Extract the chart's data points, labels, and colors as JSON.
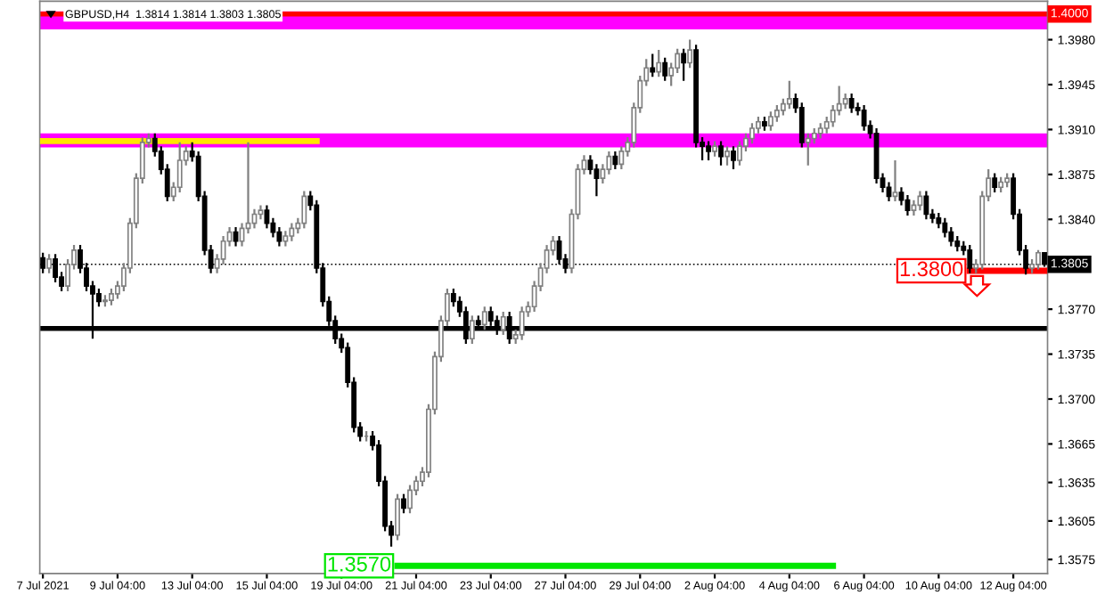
{
  "chart_data": {
    "type": "candlestick",
    "title": "GBPUSD,H4  1.3814 1.3814 1.3803 1.3805",
    "categories": [
      "7 Jul 2021",
      null,
      null,
      null,
      null,
      null,
      null,
      null,
      null,
      null,
      null,
      null,
      "9 Jul 04:00",
      null,
      null,
      null,
      null,
      null,
      null,
      null,
      null,
      null,
      null,
      null,
      "13 Jul 04:00",
      null,
      null,
      null,
      null,
      null,
      null,
      null,
      null,
      null,
      null,
      null,
      "15 Jul 04:00",
      null,
      null,
      null,
      null,
      null,
      null,
      null,
      null,
      null,
      null,
      null,
      "19 Jul 04:00",
      null,
      null,
      null,
      null,
      null,
      null,
      null,
      null,
      null,
      null,
      null,
      "21 Jul 04:00",
      null,
      null,
      null,
      null,
      null,
      null,
      null,
      null,
      null,
      null,
      null,
      "23 Jul 04:00",
      null,
      null,
      null,
      null,
      null,
      null,
      null,
      null,
      null,
      null,
      null,
      "27 Jul 04:00",
      null,
      null,
      null,
      null,
      null,
      null,
      null,
      null,
      null,
      null,
      null,
      "29 Jul 04:00",
      null,
      null,
      null,
      null,
      null,
      null,
      null,
      null,
      null,
      null,
      null,
      "2 Aug 04:00",
      null,
      null,
      null,
      null,
      null,
      null,
      null,
      null,
      null,
      null,
      null,
      "4 Aug 04:00",
      null,
      null,
      null,
      null,
      null,
      null,
      null,
      null,
      null,
      null,
      null,
      "6 Aug 04:00",
      null,
      null,
      null,
      null,
      null,
      null,
      null,
      null,
      null,
      null,
      null,
      "10 Aug 04:00",
      null,
      null,
      null,
      null,
      null,
      null,
      null,
      null,
      null,
      null,
      null,
      "12 Aug 04:00",
      null,
      null,
      null,
      null,
      null
    ],
    "ohlc": [
      [
        1.381,
        1.3814,
        1.3798,
        1.3802
      ],
      [
        1.3802,
        1.3813,
        1.3798,
        1.3809
      ],
      [
        1.3809,
        1.3813,
        1.3791,
        1.3795
      ],
      [
        1.3795,
        1.3799,
        1.3784,
        1.3788
      ],
      [
        1.3788,
        1.3809,
        1.3784,
        1.3805
      ],
      [
        1.3805,
        1.382,
        1.3801,
        1.3816
      ],
      [
        1.3816,
        1.382,
        1.3798,
        1.3802
      ],
      [
        1.3802,
        1.3806,
        1.3784,
        1.3788
      ],
      [
        1.3788,
        1.3792,
        1.3747,
        1.3782
      ],
      [
        1.3782,
        1.3786,
        1.3772,
        1.3776
      ],
      [
        1.3776,
        1.3781,
        1.3772,
        1.3777
      ],
      [
        1.3777,
        1.3786,
        1.3773,
        1.3782
      ],
      [
        1.3782,
        1.3792,
        1.3778,
        1.3788
      ],
      [
        1.3788,
        1.3806,
        1.3784,
        1.3802
      ],
      [
        1.3802,
        1.3841,
        1.3798,
        1.3837
      ],
      [
        1.3837,
        1.3876,
        1.3833,
        1.3872
      ],
      [
        1.3872,
        1.3904,
        1.3868,
        1.39
      ],
      [
        1.39,
        1.3907,
        1.3896,
        1.3903
      ],
      [
        1.3903,
        1.3907,
        1.3889,
        1.3893
      ],
      [
        1.3893,
        1.3897,
        1.3875,
        1.3879
      ],
      [
        1.3879,
        1.3883,
        1.3854,
        1.3858
      ],
      [
        1.3858,
        1.3869,
        1.3854,
        1.3865
      ],
      [
        1.3865,
        1.39,
        1.3861,
        1.3886
      ],
      [
        1.3886,
        1.3897,
        1.3882,
        1.3893
      ],
      [
        1.3893,
        1.39,
        1.3885,
        1.3889
      ],
      [
        1.3889,
        1.3893,
        1.3854,
        1.3858
      ],
      [
        1.3858,
        1.3862,
        1.3812,
        1.3816
      ],
      [
        1.3816,
        1.382,
        1.3798,
        1.3802
      ],
      [
        1.3802,
        1.3813,
        1.3798,
        1.3809
      ],
      [
        1.3809,
        1.3827,
        1.3805,
        1.3823
      ],
      [
        1.3823,
        1.3834,
        1.3819,
        1.383
      ],
      [
        1.383,
        1.3834,
        1.3819,
        1.3823
      ],
      [
        1.3823,
        1.3837,
        1.3819,
        1.3833
      ],
      [
        1.3833,
        1.39,
        1.3829,
        1.3837
      ],
      [
        1.3837,
        1.3848,
        1.3833,
        1.3844
      ],
      [
        1.3844,
        1.3851,
        1.384,
        1.3847
      ],
      [
        1.3847,
        1.3851,
        1.3833,
        1.3837
      ],
      [
        1.3837,
        1.3841,
        1.3826,
        1.383
      ],
      [
        1.383,
        1.3834,
        1.3819,
        1.3823
      ],
      [
        1.3823,
        1.3831,
        1.3819,
        1.3827
      ],
      [
        1.3827,
        1.3837,
        1.3823,
        1.3833
      ],
      [
        1.3833,
        1.3841,
        1.3829,
        1.3837
      ],
      [
        1.3837,
        1.3862,
        1.3833,
        1.3858
      ],
      [
        1.3858,
        1.3862,
        1.3847,
        1.3851
      ],
      [
        1.3851,
        1.3855,
        1.3798,
        1.3802
      ],
      [
        1.3802,
        1.3806,
        1.3772,
        1.3776
      ],
      [
        1.3776,
        1.378,
        1.3757,
        1.3761
      ],
      [
        1.3761,
        1.3765,
        1.3743,
        1.3747
      ],
      [
        1.3747,
        1.3751,
        1.3736,
        1.374
      ],
      [
        1.374,
        1.3744,
        1.3709,
        1.3713
      ],
      [
        1.3713,
        1.3717,
        1.3674,
        1.3678
      ],
      [
        1.3678,
        1.3682,
        1.3667,
        1.3671
      ],
      [
        1.3671,
        1.3675,
        1.3667,
        1.3671
      ],
      [
        1.3671,
        1.3675,
        1.366,
        1.3664
      ],
      [
        1.3664,
        1.3668,
        1.3632,
        1.3636
      ],
      [
        1.3636,
        1.364,
        1.3597,
        1.3601
      ],
      [
        1.3601,
        1.3605,
        1.3585,
        1.3594
      ],
      [
        1.3594,
        1.3626,
        1.359,
        1.3622
      ],
      [
        1.3622,
        1.3626,
        1.3611,
        1.3615
      ],
      [
        1.3615,
        1.3633,
        1.3611,
        1.3629
      ],
      [
        1.3629,
        1.364,
        1.3625,
        1.3636
      ],
      [
        1.3636,
        1.3647,
        1.3632,
        1.3643
      ],
      [
        1.3643,
        1.3696,
        1.3639,
        1.3692
      ],
      [
        1.3692,
        1.3737,
        1.3688,
        1.3733
      ],
      [
        1.3733,
        1.3765,
        1.3729,
        1.3761
      ],
      [
        1.3761,
        1.3786,
        1.3757,
        1.3782
      ],
      [
        1.3782,
        1.3786,
        1.3772,
        1.3776
      ],
      [
        1.3776,
        1.378,
        1.3764,
        1.3768
      ],
      [
        1.3768,
        1.3772,
        1.3743,
        1.3747
      ],
      [
        1.3747,
        1.3765,
        1.3743,
        1.3761
      ],
      [
        1.3761,
        1.3765,
        1.3754,
        1.3758
      ],
      [
        1.3758,
        1.3772,
        1.3754,
        1.3768
      ],
      [
        1.3768,
        1.3772,
        1.3757,
        1.3761
      ],
      [
        1.3761,
        1.3765,
        1.375,
        1.3754
      ],
      [
        1.3754,
        1.3768,
        1.375,
        1.3764
      ],
      [
        1.3764,
        1.3768,
        1.3743,
        1.3747
      ],
      [
        1.3747,
        1.3754,
        1.3743,
        1.375
      ],
      [
        1.375,
        1.3772,
        1.3746,
        1.3768
      ],
      [
        1.3768,
        1.3776,
        1.3764,
        1.3772
      ],
      [
        1.3772,
        1.3792,
        1.3768,
        1.3788
      ],
      [
        1.3788,
        1.3806,
        1.3784,
        1.3802
      ],
      [
        1.3802,
        1.382,
        1.3798,
        1.3816
      ],
      [
        1.3816,
        1.3827,
        1.3812,
        1.3823
      ],
      [
        1.3823,
        1.3827,
        1.3805,
        1.3809
      ],
      [
        1.3809,
        1.3813,
        1.3798,
        1.3802
      ],
      [
        1.3802,
        1.3848,
        1.3798,
        1.3844
      ],
      [
        1.3844,
        1.3883,
        1.384,
        1.3879
      ],
      [
        1.3879,
        1.389,
        1.3875,
        1.3886
      ],
      [
        1.3886,
        1.389,
        1.3875,
        1.3879
      ],
      [
        1.3879,
        1.3883,
        1.3858,
        1.3872
      ],
      [
        1.3872,
        1.3883,
        1.3868,
        1.3879
      ],
      [
        1.3879,
        1.3893,
        1.3875,
        1.3889
      ],
      [
        1.3889,
        1.3893,
        1.3879,
        1.3883
      ],
      [
        1.3883,
        1.3897,
        1.3879,
        1.3893
      ],
      [
        1.3893,
        1.3904,
        1.3889,
        1.39
      ],
      [
        1.39,
        1.3931,
        1.3896,
        1.3927
      ],
      [
        1.3927,
        1.3952,
        1.3923,
        1.3948
      ],
      [
        1.3948,
        1.3965,
        1.3944,
        1.3958
      ],
      [
        1.3958,
        1.3969,
        1.3951,
        1.3955
      ],
      [
        1.3955,
        1.3972,
        1.3951,
        1.3962
      ],
      [
        1.3962,
        1.3966,
        1.3948,
        1.3952
      ],
      [
        1.3952,
        1.3962,
        1.3944,
        1.3958
      ],
      [
        1.3958,
        1.3973,
        1.3954,
        1.3969
      ],
      [
        1.3969,
        1.3973,
        1.3948,
        1.3962
      ],
      [
        1.3962,
        1.398,
        1.3958,
        1.3972
      ],
      [
        1.3972,
        1.3976,
        1.3896,
        1.39
      ],
      [
        1.39,
        1.3904,
        1.3886,
        1.3897
      ],
      [
        1.3897,
        1.3901,
        1.3886,
        1.3893
      ],
      [
        1.3893,
        1.3901,
        1.3889,
        1.3897
      ],
      [
        1.3897,
        1.3901,
        1.3882,
        1.3889
      ],
      [
        1.3889,
        1.3897,
        1.3882,
        1.3893
      ],
      [
        1.3893,
        1.3897,
        1.3879,
        1.3886
      ],
      [
        1.3886,
        1.3901,
        1.3882,
        1.3897
      ],
      [
        1.3897,
        1.3907,
        1.3893,
        1.3903
      ],
      [
        1.3903,
        1.3915,
        1.3899,
        1.3911
      ],
      [
        1.3911,
        1.392,
        1.3907,
        1.3916
      ],
      [
        1.3916,
        1.392,
        1.3909,
        1.3913
      ],
      [
        1.3913,
        1.3924,
        1.3909,
        1.392
      ],
      [
        1.392,
        1.3929,
        1.3916,
        1.3925
      ],
      [
        1.3925,
        1.3934,
        1.3921,
        1.393
      ],
      [
        1.393,
        1.3948,
        1.3926,
        1.3934
      ],
      [
        1.3934,
        1.3938,
        1.3923,
        1.3927
      ],
      [
        1.3927,
        1.3931,
        1.3896,
        1.39
      ],
      [
        1.39,
        1.3907,
        1.3882,
        1.3903
      ],
      [
        1.3903,
        1.3911,
        1.3899,
        1.3907
      ],
      [
        1.3907,
        1.3915,
        1.3903,
        1.3911
      ],
      [
        1.3911,
        1.392,
        1.3907,
        1.3916
      ],
      [
        1.3916,
        1.3929,
        1.3912,
        1.3925
      ],
      [
        1.3925,
        1.3944,
        1.3921,
        1.393
      ],
      [
        1.393,
        1.3938,
        1.3926,
        1.3934
      ],
      [
        1.3934,
        1.3938,
        1.3923,
        1.3927
      ],
      [
        1.3927,
        1.3931,
        1.3921,
        1.3925
      ],
      [
        1.3925,
        1.3929,
        1.3909,
        1.3913
      ],
      [
        1.3913,
        1.3917,
        1.3903,
        1.3907
      ],
      [
        1.3907,
        1.3911,
        1.3868,
        1.3872
      ],
      [
        1.3872,
        1.3876,
        1.3861,
        1.3865
      ],
      [
        1.3865,
        1.3869,
        1.3854,
        1.3858
      ],
      [
        1.3858,
        1.3886,
        1.3854,
        1.3861
      ],
      [
        1.3861,
        1.3865,
        1.3851,
        1.3855
      ],
      [
        1.3855,
        1.3859,
        1.3843,
        1.3847
      ],
      [
        1.3847,
        1.3855,
        1.3843,
        1.3851
      ],
      [
        1.3851,
        1.3862,
        1.3847,
        1.3858
      ],
      [
        1.3858,
        1.3862,
        1.384,
        1.3844
      ],
      [
        1.3844,
        1.3848,
        1.3837,
        1.3841
      ],
      [
        1.3841,
        1.3845,
        1.3833,
        1.3837
      ],
      [
        1.3837,
        1.3841,
        1.3826,
        1.383
      ],
      [
        1.383,
        1.3834,
        1.3819,
        1.3823
      ],
      [
        1.3823,
        1.3827,
        1.3815,
        1.3819
      ],
      [
        1.3819,
        1.3823,
        1.3812,
        1.3816
      ],
      [
        1.3816,
        1.382,
        1.3798,
        1.3802
      ],
      [
        1.3802,
        1.3809,
        1.3798,
        1.3805
      ],
      [
        1.3805,
        1.3862,
        1.3801,
        1.3858
      ],
      [
        1.3858,
        1.3879,
        1.3854,
        1.3872
      ],
      [
        1.3872,
        1.3876,
        1.3861,
        1.3865
      ],
      [
        1.3865,
        1.3873,
        1.3861,
        1.3869
      ],
      [
        1.3869,
        1.3876,
        1.3865,
        1.3872
      ],
      [
        1.3872,
        1.3876,
        1.384,
        1.3844
      ],
      [
        1.3844,
        1.3848,
        1.3812,
        1.3816
      ],
      [
        1.3816,
        1.382,
        1.3797,
        1.3802
      ],
      [
        1.3802,
        1.3809,
        1.3798,
        1.3805
      ],
      [
        1.3805,
        1.3816,
        1.3801,
        1.3814
      ],
      [
        1.3814,
        1.3814,
        1.3803,
        1.3805
      ]
    ],
    "series": [
      {
        "type": "line",
        "name": "1.3570",
        "color": "#00e600",
        "values": [
          null,
          null,
          null,
          null,
          null,
          null,
          null,
          null,
          null,
          null,
          null,
          null,
          null,
          null,
          null,
          null,
          null,
          null,
          null,
          null,
          null,
          null,
          null,
          null,
          null,
          null,
          null,
          null,
          null,
          null,
          null,
          null,
          null,
          null,
          null,
          null,
          null,
          null,
          null,
          null,
          null,
          null,
          null,
          null,
          null,
          null,
          null,
          null,
          null,
          null,
          null,
          null,
          null,
          null,
          null,
          null,
          null,
          1.357,
          1.357,
          1.357,
          1.357,
          1.357,
          1.357,
          1.357,
          1.357,
          1.357,
          1.357,
          1.357,
          1.357,
          1.357,
          1.357,
          1.357,
          1.357,
          1.357,
          1.357,
          1.357,
          1.357,
          1.357,
          1.357,
          1.357,
          1.357,
          1.357,
          1.357,
          1.357,
          1.357,
          1.357,
          1.357,
          1.357,
          1.357,
          1.357,
          1.357,
          1.357,
          1.357,
          1.357,
          1.357,
          1.357,
          1.357,
          1.357,
          1.357,
          1.357,
          1.357,
          1.357,
          1.357,
          1.357,
          1.357,
          1.357,
          1.357,
          1.357,
          1.357,
          1.357,
          1.357,
          1.357,
          1.357,
          1.357,
          1.357,
          1.357,
          1.357,
          1.357,
          1.357,
          1.357,
          1.357,
          1.357,
          1.357,
          1.357,
          1.357,
          1.357,
          1.357,
          1.357,
          null,
          null,
          null,
          null,
          null,
          null,
          null,
          null,
          null,
          null,
          null,
          null,
          null,
          null,
          null,
          null,
          null,
          null,
          null,
          null,
          null,
          null,
          null,
          null,
          null,
          null,
          null,
          null,
          null,
          null,
          null,
          null,
          null,
          null
        ]
      },
      {
        "type": "line",
        "name": "1.3800",
        "color": "#ff0000",
        "values": [
          null,
          null,
          null,
          null,
          null,
          null,
          null,
          null,
          null,
          null,
          null,
          null,
          null,
          null,
          null,
          null,
          null,
          null,
          null,
          null,
          null,
          null,
          null,
          null,
          null,
          null,
          null,
          null,
          null,
          null,
          null,
          null,
          null,
          null,
          null,
          null,
          null,
          null,
          null,
          null,
          null,
          null,
          null,
          null,
          null,
          null,
          null,
          null,
          null,
          null,
          null,
          null,
          null,
          null,
          null,
          null,
          null,
          null,
          null,
          null,
          null,
          null,
          null,
          null,
          null,
          null,
          null,
          null,
          null,
          null,
          null,
          null,
          null,
          null,
          null,
          null,
          null,
          null,
          null,
          null,
          null,
          null,
          null,
          null,
          null,
          null,
          null,
          null,
          null,
          null,
          null,
          null,
          null,
          null,
          null,
          null,
          null,
          null,
          null,
          null,
          null,
          null,
          null,
          null,
          null,
          null,
          null,
          null,
          null,
          null,
          null,
          null,
          null,
          null,
          null,
          null,
          null,
          null,
          null,
          null,
          null,
          null,
          null,
          null,
          null,
          null,
          null,
          null,
          null,
          null,
          null,
          null,
          null,
          null,
          null,
          null,
          null,
          null,
          null,
          null,
          null,
          null,
          null,
          null,
          null,
          null,
          null,
          null,
          null,
          1.38,
          1.38,
          1.38,
          1.38,
          1.38,
          1.38,
          1.38,
          1.38,
          1.38,
          1.38,
          1.38,
          1.38,
          1.38
        ]
      },
      {
        "type": "line",
        "color": "#ffe600",
        "values": [
          1.3901,
          1.3901,
          1.3901,
          1.3901,
          1.3901,
          1.3901,
          1.3901,
          1.3901,
          1.3901,
          1.3901,
          1.3901,
          1.3901,
          1.3901,
          1.3901,
          1.3901,
          1.3901,
          1.3901,
          1.3901,
          1.3901,
          1.3901,
          1.3901,
          1.3901,
          1.3901,
          1.3901,
          1.3901,
          1.3901,
          1.3901,
          1.3901,
          1.3901,
          1.3901,
          1.3901,
          1.3901,
          1.3901,
          1.3901,
          1.3901,
          1.3901,
          1.3901,
          1.3901,
          1.3901,
          1.3901,
          1.3901,
          1.3901,
          1.3901,
          1.3901,
          1.3901,
          null,
          null,
          null,
          null,
          null,
          null,
          null,
          null,
          null,
          null,
          null,
          null,
          null,
          null,
          null,
          null,
          null,
          null,
          null,
          null,
          null,
          null,
          null,
          null,
          null,
          null,
          null,
          null,
          null,
          null,
          null,
          null,
          null,
          null,
          null,
          null,
          null,
          null,
          null,
          null,
          null,
          null,
          null,
          null,
          null,
          null,
          null,
          null,
          null,
          null,
          null,
          null,
          null,
          null,
          null,
          null,
          null,
          null,
          null,
          null,
          null,
          null,
          null,
          null,
          null,
          null,
          null,
          null,
          null,
          null,
          null,
          null,
          null,
          null,
          null,
          null,
          null,
          null,
          null,
          null,
          null,
          null,
          null,
          null,
          null,
          null,
          null,
          null,
          null,
          null,
          null,
          null,
          null,
          null,
          null,
          null,
          null,
          null,
          null,
          null,
          null,
          null,
          null,
          null,
          null,
          null,
          null,
          null,
          null,
          null,
          null,
          null,
          null,
          null,
          null,
          null,
          null
        ]
      }
    ],
    "bands": [
      {
        "axis": "y",
        "from": 1.3988,
        "to": 1.4002,
        "color": "#ff00ff"
      },
      {
        "axis": "y",
        "from": 1.3896,
        "to": 1.3907,
        "color": "#ff00ff"
      }
    ],
    "ref_lines": [
      {
        "axis": "y",
        "value": 1.4,
        "label": "1.4000",
        "color": "#ff0000"
      },
      {
        "axis": "y",
        "value": 1.3805,
        "label": "1.3805",
        "color": "#000000",
        "line_style": "dotted"
      },
      {
        "axis": "y",
        "value": 1.3755,
        "color": "#000000"
      }
    ],
    "ylim": [
      1.3564,
      1.401
    ],
    "yticks": [
      {
        "value": 1.398,
        "label": "1.3980"
      },
      1.3945,
      {
        "value": 1.391,
        "label": "1.3910"
      },
      1.3875,
      {
        "value": 1.384,
        "label": "1.3840"
      },
      {
        "value": 1.377,
        "label": "1.3770"
      },
      1.3735,
      {
        "value": 1.37,
        "label": "1.3700"
      },
      1.3665,
      1.3635,
      1.3605,
      1.3575
    ],
    "grid": false,
    "legend": false
  }
}
